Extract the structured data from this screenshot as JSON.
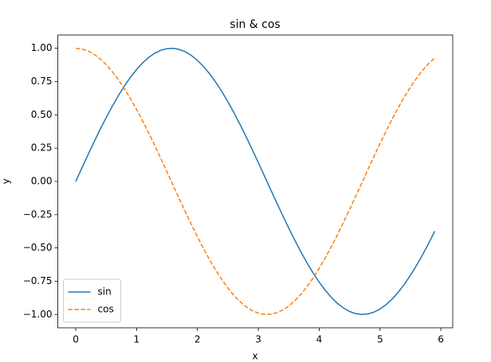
{
  "chart_data": {
    "type": "line",
    "title": "sin & cos",
    "x_label": "x",
    "y_label": "y",
    "x": [
      0,
      0.1,
      0.2,
      0.3,
      0.4,
      0.5,
      0.6,
      0.7,
      0.8,
      0.9,
      1.0,
      1.1,
      1.2,
      1.3,
      1.4,
      1.5,
      1.6,
      1.7,
      1.8,
      1.9,
      2.0,
      2.1,
      2.2,
      2.3,
      2.4,
      2.5,
      2.6,
      2.7,
      2.8,
      2.9,
      3.0,
      3.1,
      3.2,
      3.3,
      3.4,
      3.5,
      3.6,
      3.7,
      3.8,
      3.9,
      4.0,
      4.1,
      4.2,
      4.3,
      4.4,
      4.5,
      4.6,
      4.7,
      4.8,
      4.9,
      5.0,
      5.1,
      5.2,
      5.3,
      5.4,
      5.5,
      5.6,
      5.7,
      5.8,
      5.9
    ],
    "series": [
      {
        "name": "sin",
        "color": "#1f77b4",
        "linestyle": "solid",
        "values": [
          0,
          0.0998,
          0.1987,
          0.2955,
          0.3894,
          0.4794,
          0.5646,
          0.6442,
          0.7174,
          0.7833,
          0.8415,
          0.8912,
          0.932,
          0.9636,
          0.9854,
          0.9975,
          0.9996,
          0.9917,
          0.9738,
          0.9463,
          0.9093,
          0.8632,
          0.8085,
          0.7457,
          0.6755,
          0.5985,
          0.5155,
          0.4274,
          0.335,
          0.2392,
          0.1411,
          0.0416,
          -0.0584,
          -0.1577,
          -0.2555,
          -0.3508,
          -0.4425,
          -0.5298,
          -0.6119,
          -0.6878,
          -0.7568,
          -0.8183,
          -0.8716,
          -0.9162,
          -0.9516,
          -0.9775,
          -0.9937,
          -0.9999,
          -0.9962,
          -0.9825,
          -0.9589,
          -0.9258,
          -0.8835,
          -0.8323,
          -0.7728,
          -0.7055,
          -0.6313,
          -0.5507,
          -0.4646,
          -0.3739
        ]
      },
      {
        "name": "cos",
        "color": "#ff7f0e",
        "linestyle": "dashed",
        "values": [
          1,
          0.995,
          0.9801,
          0.9553,
          0.9211,
          0.8776,
          0.8253,
          0.7648,
          0.6967,
          0.6216,
          0.5403,
          0.4536,
          0.3624,
          0.2675,
          0.17,
          0.0707,
          -0.0292,
          -0.1288,
          -0.2272,
          -0.3233,
          -0.4161,
          -0.5048,
          -0.5885,
          -0.6663,
          -0.7374,
          -0.8011,
          -0.8569,
          -0.9041,
          -0.9422,
          -0.971,
          -0.99,
          -0.9991,
          -0.9983,
          -0.9875,
          -0.9668,
          -0.9365,
          -0.8968,
          -0.8481,
          -0.791,
          -0.7259,
          -0.6536,
          -0.5748,
          -0.4903,
          -0.4008,
          -0.3073,
          -0.2108,
          -0.1122,
          -0.0124,
          0.0875,
          0.1865,
          0.2837,
          0.378,
          0.4685,
          0.5544,
          0.6347,
          0.7087,
          0.7756,
          0.8347,
          0.8855,
          0.9275
        ]
      }
    ],
    "xlim": [
      -0.295,
      6.195
    ],
    "xticks": [
      0,
      1,
      2,
      3,
      4,
      5,
      6
    ],
    "ylim": [
      -1.1,
      1.1
    ],
    "yticks": [
      {
        "value": -1,
        "label": "−1.00"
      },
      {
        "value": -0.75,
        "label": "−0.75"
      },
      {
        "value": -0.5,
        "label": "−0.50"
      },
      {
        "value": -0.25,
        "label": "−0.25"
      },
      {
        "value": 0,
        "label": "0.00"
      },
      0.25,
      {
        "value": 0.5,
        "label": "0.50"
      },
      0.75,
      {
        "value": 1,
        "label": "1.00"
      }
    ],
    "grid": false,
    "legend": "lower left"
  }
}
